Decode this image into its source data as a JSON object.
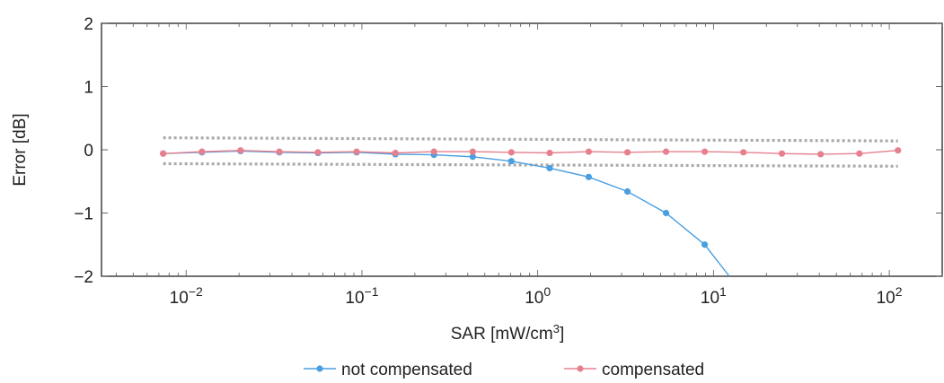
{
  "chart_data": {
    "type": "line",
    "title": "",
    "xlabel": "SAR [mW/cm",
    "xlabel_sup": "3",
    "xlabel_end": "]",
    "ylabel": "Error [dB]",
    "xscale": "log",
    "xlim": [
      0.0033,
      200
    ],
    "ylim": [
      -2,
      2
    ],
    "grid": false,
    "legend_position": "bottom",
    "x_ticks": [
      {
        "value": 0.01,
        "base": "10",
        "exp": "−2"
      },
      {
        "value": 0.1,
        "base": "10",
        "exp": "−1"
      },
      {
        "value": 1,
        "base": "10",
        "exp": "0"
      },
      {
        "value": 10,
        "base": "10",
        "exp": "1"
      },
      {
        "value": 100,
        "base": "10",
        "exp": "2"
      }
    ],
    "y_ticks": [
      {
        "value": 2,
        "label": "2"
      },
      {
        "value": 1,
        "label": "1"
      },
      {
        "value": 0,
        "label": "0"
      },
      {
        "value": -1,
        "label": "−1"
      },
      {
        "value": -2,
        "label": "−2"
      }
    ],
    "series": [
      {
        "name": "not compensated",
        "color": "#4a9fe0",
        "x": [
          0.0074,
          0.0123,
          0.0204,
          0.0339,
          0.0562,
          0.0933,
          0.155,
          0.257,
          0.427,
          0.708,
          1.17,
          1.95,
          3.24,
          5.37,
          8.91,
          12.3
        ],
        "y": [
          -0.06,
          -0.04,
          -0.02,
          -0.04,
          -0.05,
          -0.04,
          -0.07,
          -0.08,
          -0.11,
          -0.18,
          -0.29,
          -0.43,
          -0.66,
          -1.0,
          -1.5,
          -2.0
        ]
      },
      {
        "name": "compensated",
        "color": "#e6808e",
        "x": [
          0.0074,
          0.0123,
          0.0204,
          0.0339,
          0.0562,
          0.0933,
          0.155,
          0.257,
          0.427,
          0.708,
          1.17,
          1.95,
          3.24,
          5.37,
          8.91,
          14.8,
          24.5,
          40.7,
          67.6,
          112
        ],
        "y": [
          -0.06,
          -0.03,
          -0.01,
          -0.03,
          -0.04,
          -0.03,
          -0.05,
          -0.03,
          -0.03,
          -0.04,
          -0.05,
          -0.03,
          -0.04,
          -0.03,
          -0.03,
          -0.04,
          -0.06,
          -0.07,
          -0.06,
          -0.01
        ]
      }
    ],
    "tolerance_bands": {
      "color": "#aaaaaa",
      "x": [
        0.0074,
        112
      ],
      "upper": [
        0.19,
        0.14
      ],
      "lower": [
        -0.22,
        -0.26
      ]
    }
  }
}
